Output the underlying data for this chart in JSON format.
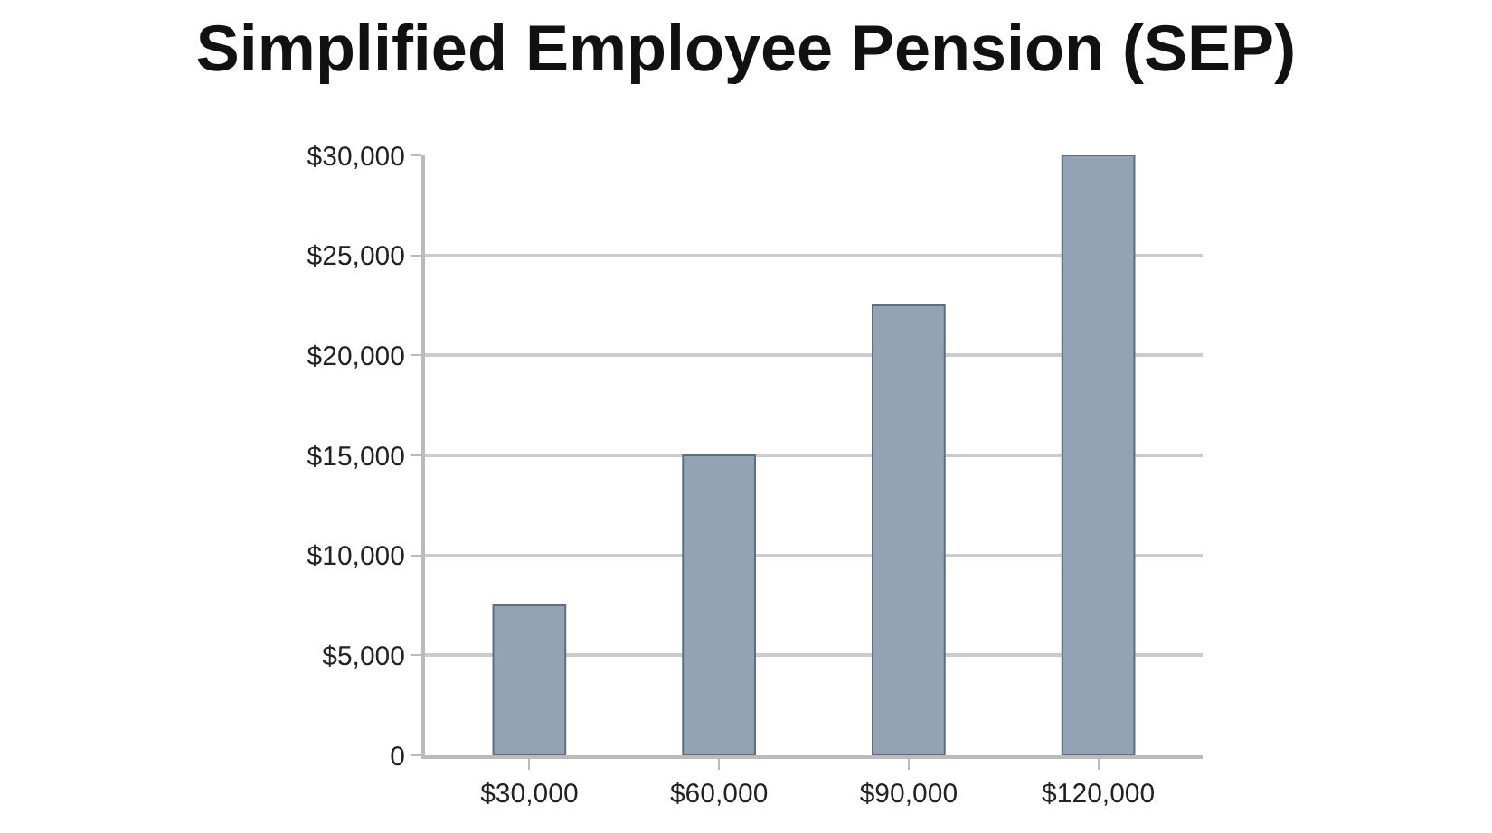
{
  "chart_data": {
    "type": "bar",
    "title": "Simplified Employee Pension (SEP)",
    "categories": [
      "$30,000",
      "$60,000",
      "$90,000",
      "$120,000"
    ],
    "values": [
      7500,
      15000,
      22500,
      30000
    ],
    "color": "#94a3b3",
    "ylim": [
      0,
      30000
    ],
    "yticks": [
      {
        "value": 0,
        "label": "0"
      },
      {
        "value": 5000,
        "label": "$5,000"
      },
      {
        "value": 10000,
        "label": "$10,000"
      },
      {
        "value": 15000,
        "label": "$15,000"
      },
      {
        "value": 20000,
        "label": "$20,000"
      },
      {
        "value": 25000,
        "label": "$25,000"
      },
      {
        "value": 30000,
        "label": "$30,000"
      }
    ],
    "grid": "y"
  }
}
